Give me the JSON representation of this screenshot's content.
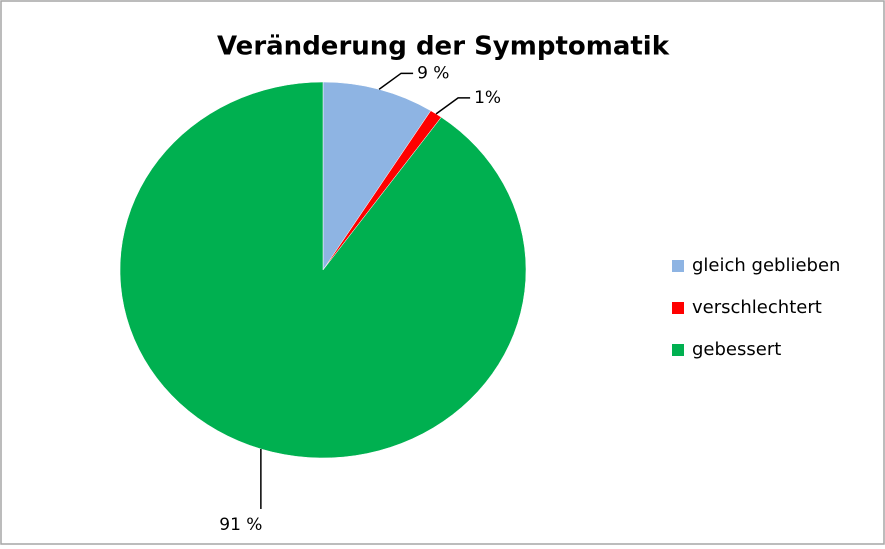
{
  "chart_data": {
    "type": "pie",
    "title": "Veränderung der Symptomatik",
    "categories": [
      "gleich geblieben",
      "verschlechtert",
      "gebessert"
    ],
    "values": [
      9,
      1,
      91
    ],
    "value_labels": [
      "9 %",
      "1%",
      "91 %"
    ],
    "colors": [
      "#8eb4e3",
      "#ff0000",
      "#00b050"
    ],
    "legend": "right"
  }
}
